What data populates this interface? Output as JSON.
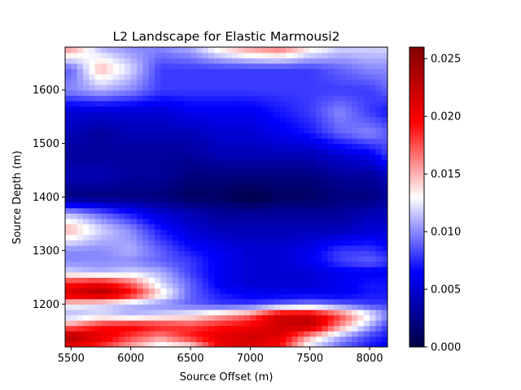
{
  "chart_data": {
    "type": "heatmap",
    "title": "L2 Landscape for Elastic Marmousi2",
    "xlabel": "Source Offset (m)",
    "ylabel": "Source Depth (m)",
    "xlim": [
      5450,
      8150
    ],
    "ylim": [
      1120,
      1680
    ],
    "xticks": [
      5500,
      6000,
      6500,
      7000,
      7500,
      8000
    ],
    "yticks": [
      1200,
      1300,
      1400,
      1500,
      1600
    ],
    "colorbar": {
      "colormap": "seismic",
      "range": [
        0.0,
        0.026
      ],
      "ticks": [
        "0.000",
        "0.005",
        "0.010",
        "0.015",
        "0.020",
        "0.025"
      ]
    },
    "grid": {
      "x": [
        5500,
        5750,
        6000,
        6250,
        6500,
        6750,
        7000,
        7250,
        7500,
        7750,
        8000,
        8150
      ],
      "y": [
        1120,
        1140,
        1160,
        1180,
        1200,
        1220,
        1240,
        1260,
        1280,
        1300,
        1340,
        1370,
        1400,
        1440,
        1480,
        1520,
        1560,
        1600,
        1640,
        1680
      ],
      "z": [
        [
          0.02,
          0.018,
          0.015,
          0.012,
          0.013,
          0.02,
          0.021,
          0.019,
          0.012,
          0.009,
          0.007,
          0.006
        ],
        [
          0.024,
          0.021,
          0.018,
          0.016,
          0.019,
          0.021,
          0.022,
          0.021,
          0.015,
          0.011,
          0.008,
          0.007
        ],
        [
          0.016,
          0.019,
          0.02,
          0.019,
          0.018,
          0.019,
          0.02,
          0.022,
          0.023,
          0.016,
          0.011,
          0.008
        ],
        [
          0.011,
          0.012,
          0.011,
          0.012,
          0.013,
          0.015,
          0.017,
          0.022,
          0.022,
          0.018,
          0.013,
          0.01
        ],
        [
          0.013,
          0.012,
          0.011,
          0.01,
          0.009,
          0.008,
          0.008,
          0.009,
          0.01,
          0.009,
          0.008,
          0.008
        ],
        [
          0.022,
          0.024,
          0.02,
          0.014,
          0.009,
          0.007,
          0.006,
          0.006,
          0.006,
          0.006,
          0.007,
          0.007
        ],
        [
          0.019,
          0.02,
          0.017,
          0.012,
          0.009,
          0.006,
          0.005,
          0.005,
          0.005,
          0.006,
          0.007,
          0.007
        ],
        [
          0.012,
          0.011,
          0.012,
          0.011,
          0.008,
          0.006,
          0.005,
          0.005,
          0.005,
          0.006,
          0.006,
          0.006
        ],
        [
          0.01,
          0.01,
          0.01,
          0.009,
          0.008,
          0.006,
          0.005,
          0.005,
          0.006,
          0.008,
          0.009,
          0.008
        ],
        [
          0.01,
          0.01,
          0.011,
          0.009,
          0.007,
          0.006,
          0.005,
          0.005,
          0.006,
          0.008,
          0.008,
          0.007
        ],
        [
          0.015,
          0.012,
          0.01,
          0.007,
          0.005,
          0.004,
          0.004,
          0.004,
          0.004,
          0.004,
          0.005,
          0.005
        ],
        [
          0.011,
          0.009,
          0.007,
          0.005,
          0.004,
          0.003,
          0.003,
          0.003,
          0.003,
          0.003,
          0.004,
          0.004
        ],
        [
          0.002,
          0.002,
          0.002,
          0.002,
          0.001,
          0.001,
          0.0,
          0.001,
          0.001,
          0.002,
          0.002,
          0.003
        ],
        [
          0.004,
          0.004,
          0.003,
          0.003,
          0.002,
          0.002,
          0.002,
          0.002,
          0.002,
          0.003,
          0.003,
          0.004
        ],
        [
          0.003,
          0.003,
          0.003,
          0.003,
          0.003,
          0.004,
          0.004,
          0.004,
          0.004,
          0.005,
          0.006,
          0.008
        ],
        [
          0.004,
          0.003,
          0.004,
          0.004,
          0.004,
          0.005,
          0.005,
          0.006,
          0.007,
          0.009,
          0.01,
          0.009
        ],
        [
          0.005,
          0.005,
          0.005,
          0.005,
          0.006,
          0.006,
          0.006,
          0.007,
          0.008,
          0.01,
          0.008,
          0.007
        ],
        [
          0.01,
          0.011,
          0.01,
          0.008,
          0.008,
          0.008,
          0.008,
          0.008,
          0.008,
          0.008,
          0.008,
          0.009
        ],
        [
          0.009,
          0.015,
          0.012,
          0.008,
          0.008,
          0.008,
          0.008,
          0.008,
          0.008,
          0.009,
          0.01,
          0.01
        ],
        [
          0.016,
          0.011,
          0.01,
          0.01,
          0.011,
          0.014,
          0.016,
          0.017,
          0.014,
          0.012,
          0.012,
          0.012
        ]
      ]
    }
  }
}
